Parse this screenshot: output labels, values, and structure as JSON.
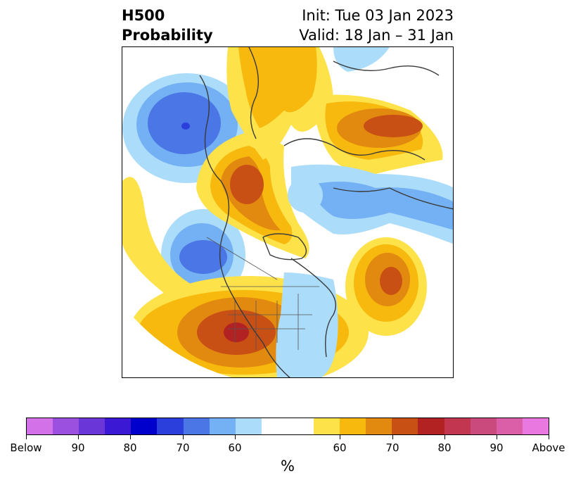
{
  "title": {
    "left_line1": "H500",
    "left_line2": "Probability",
    "right_line1": "Init: Tue 03 Jan 2023",
    "right_line2": "Valid: 18 Jan – 31 Jan"
  },
  "colorbar": {
    "units": "%",
    "below_colors": [
      "#d372e8",
      "#9b50e0",
      "#6a36d8",
      "#3a18d4",
      "#0000cd",
      "#2a3fdc",
      "#4a76e6",
      "#74b0f4",
      "#abdcfa"
    ],
    "neutral_color": "#ffffff",
    "above_colors": [
      "#fee24a",
      "#f7b90d",
      "#e28a10",
      "#c95014",
      "#b22222",
      "#c23650",
      "#cb4a7e",
      "#da5ea8",
      "#e979e1"
    ],
    "tick_labels": [
      "Below",
      "90",
      "80",
      "70",
      "60",
      "60",
      "70",
      "80",
      "90",
      "Above"
    ]
  },
  "map": {
    "land_lines": "black coastlines and borders",
    "colors": {
      "blue_light": "#abdcfa",
      "blue_mid": "#74b0f4",
      "blue_deep": "#4a76e6",
      "blue_darkest": "#2a3fdc",
      "yellow": "#fee24a",
      "gold": "#f7b90d",
      "orange": "#e28a10",
      "rust": "#c95014",
      "red": "#b22222"
    }
  }
}
